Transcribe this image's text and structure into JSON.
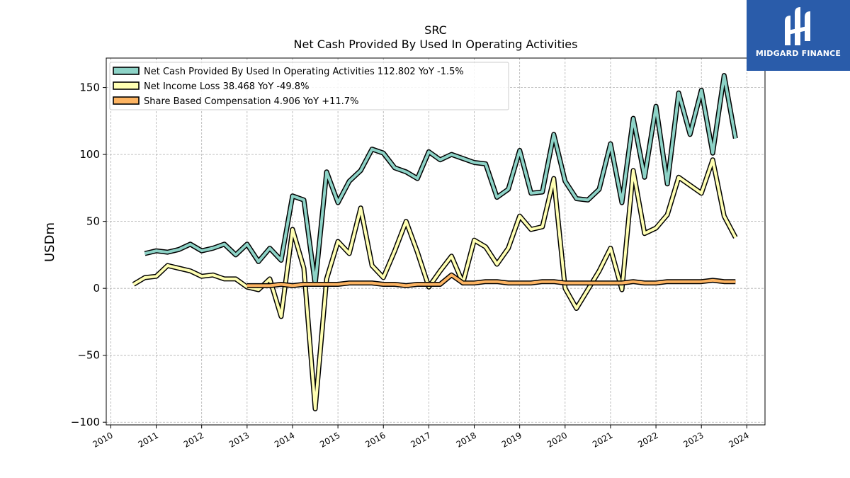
{
  "chart_data": {
    "type": "line",
    "title": "SRC",
    "subtitle": "Net Cash Provided By Used In Operating Activities",
    "xlabel": "",
    "ylabel": "USDm",
    "xlim": [
      2009.9,
      2024.4
    ],
    "ylim": [
      -102,
      172
    ],
    "x_ticks": [
      "2010",
      "2011",
      "2012",
      "2013",
      "2014",
      "2015",
      "2016",
      "2017",
      "2018",
      "2019",
      "2020",
      "2021",
      "2022",
      "2023",
      "2024"
    ],
    "y_ticks": [
      150,
      100,
      50,
      0,
      -50,
      -100
    ],
    "y_tick_labels": [
      "150",
      "100",
      "50",
      "0",
      "−50",
      "−100"
    ],
    "grid": true,
    "legend_position": "top-left",
    "series": [
      {
        "name": "Net Cash Provided By Used In Operating Activities  112.802 YoY -1.5%",
        "color": "#8dd3c7",
        "points": [
          [
            2010.75,
            26
          ],
          [
            2011.0,
            28
          ],
          [
            2011.25,
            27
          ],
          [
            2011.5,
            29
          ],
          [
            2011.75,
            33
          ],
          [
            2012.0,
            28
          ],
          [
            2012.25,
            30
          ],
          [
            2012.5,
            33
          ],
          [
            2012.75,
            25
          ],
          [
            2013.0,
            33
          ],
          [
            2013.25,
            20
          ],
          [
            2013.5,
            30
          ],
          [
            2013.75,
            21
          ],
          [
            2014.0,
            69
          ],
          [
            2014.25,
            66
          ],
          [
            2014.5,
            3
          ],
          [
            2014.75,
            87
          ],
          [
            2015.0,
            64
          ],
          [
            2015.25,
            80
          ],
          [
            2015.5,
            88
          ],
          [
            2015.75,
            104
          ],
          [
            2016.0,
            101
          ],
          [
            2016.25,
            90
          ],
          [
            2016.5,
            87
          ],
          [
            2016.75,
            82
          ],
          [
            2017.0,
            102
          ],
          [
            2017.25,
            96
          ],
          [
            2017.5,
            100
          ],
          [
            2017.75,
            97
          ],
          [
            2018.0,
            94
          ],
          [
            2018.25,
            93
          ],
          [
            2018.5,
            68
          ],
          [
            2018.75,
            74
          ],
          [
            2019.0,
            103
          ],
          [
            2019.25,
            71
          ],
          [
            2019.5,
            72
          ],
          [
            2019.75,
            115
          ],
          [
            2020.0,
            80
          ],
          [
            2020.25,
            67
          ],
          [
            2020.5,
            66
          ],
          [
            2020.75,
            74
          ],
          [
            2021.0,
            108
          ],
          [
            2021.25,
            64
          ],
          [
            2021.5,
            127
          ],
          [
            2021.75,
            83
          ],
          [
            2022.0,
            136
          ],
          [
            2022.25,
            78
          ],
          [
            2022.5,
            146
          ],
          [
            2022.75,
            115
          ],
          [
            2023.0,
            148
          ],
          [
            2023.25,
            101
          ],
          [
            2023.5,
            159
          ],
          [
            2023.75,
            112
          ]
        ]
      },
      {
        "name": "Net Income Loss  38.468 YoY -49.8%",
        "color": "#ffffb3",
        "points": [
          [
            2010.5,
            3
          ],
          [
            2010.75,
            8
          ],
          [
            2011.0,
            9
          ],
          [
            2011.25,
            17
          ],
          [
            2011.5,
            15
          ],
          [
            2011.75,
            13
          ],
          [
            2012.0,
            9
          ],
          [
            2012.25,
            10
          ],
          [
            2012.5,
            7
          ],
          [
            2012.75,
            7
          ],
          [
            2013.0,
            1
          ],
          [
            2013.25,
            -1
          ],
          [
            2013.5,
            7
          ],
          [
            2013.75,
            -21
          ],
          [
            2014.0,
            44
          ],
          [
            2014.25,
            15
          ],
          [
            2014.5,
            -90
          ],
          [
            2014.75,
            7
          ],
          [
            2015.0,
            35
          ],
          [
            2015.25,
            26
          ],
          [
            2015.5,
            60
          ],
          [
            2015.75,
            17
          ],
          [
            2016.0,
            8
          ],
          [
            2016.25,
            28
          ],
          [
            2016.5,
            50
          ],
          [
            2016.75,
            27
          ],
          [
            2017.0,
            1
          ],
          [
            2017.25,
            13
          ],
          [
            2017.5,
            24
          ],
          [
            2017.75,
            4
          ],
          [
            2018.0,
            36
          ],
          [
            2018.25,
            31
          ],
          [
            2018.5,
            18
          ],
          [
            2018.75,
            30
          ],
          [
            2019.0,
            54
          ],
          [
            2019.25,
            44
          ],
          [
            2019.5,
            46
          ],
          [
            2019.75,
            82
          ],
          [
            2020.0,
            0
          ],
          [
            2020.25,
            -15
          ],
          [
            2020.5,
            -1
          ],
          [
            2020.75,
            13
          ],
          [
            2021.0,
            30
          ],
          [
            2021.25,
            -1
          ],
          [
            2021.5,
            88
          ],
          [
            2021.75,
            41
          ],
          [
            2022.0,
            45
          ],
          [
            2022.25,
            55
          ],
          [
            2022.5,
            83
          ],
          [
            2022.75,
            77
          ],
          [
            2023.0,
            71
          ],
          [
            2023.25,
            96
          ],
          [
            2023.5,
            54
          ],
          [
            2023.75,
            38
          ]
        ]
      },
      {
        "name": "Share Based Compensation  4.906 YoY +11.7%",
        "color": "#fdb462",
        "points": [
          [
            2013.0,
            2
          ],
          [
            2013.25,
            2
          ],
          [
            2013.5,
            2
          ],
          [
            2013.75,
            3
          ],
          [
            2014.0,
            2
          ],
          [
            2014.25,
            3
          ],
          [
            2014.5,
            3
          ],
          [
            2014.75,
            3
          ],
          [
            2015.0,
            3
          ],
          [
            2015.25,
            4
          ],
          [
            2015.5,
            4
          ],
          [
            2015.75,
            4
          ],
          [
            2016.0,
            3
          ],
          [
            2016.25,
            3
          ],
          [
            2016.5,
            2
          ],
          [
            2016.75,
            3
          ],
          [
            2017.0,
            3
          ],
          [
            2017.25,
            3
          ],
          [
            2017.5,
            10
          ],
          [
            2017.75,
            4
          ],
          [
            2018.0,
            4
          ],
          [
            2018.25,
            5
          ],
          [
            2018.5,
            5
          ],
          [
            2018.75,
            4
          ],
          [
            2019.0,
            4
          ],
          [
            2019.25,
            4
          ],
          [
            2019.5,
            5
          ],
          [
            2019.75,
            5
          ],
          [
            2020.0,
            4
          ],
          [
            2020.25,
            4
          ],
          [
            2020.5,
            4
          ],
          [
            2020.75,
            4
          ],
          [
            2021.0,
            4
          ],
          [
            2021.25,
            4
          ],
          [
            2021.5,
            5
          ],
          [
            2021.75,
            4
          ],
          [
            2022.0,
            4
          ],
          [
            2022.25,
            5
          ],
          [
            2022.5,
            5
          ],
          [
            2022.75,
            5
          ],
          [
            2023.0,
            5
          ],
          [
            2023.25,
            6
          ],
          [
            2023.5,
            5
          ],
          [
            2023.75,
            5
          ]
        ]
      }
    ]
  },
  "logo": {
    "text": "MIDGARD FINANCE",
    "color": "#2a5caa"
  }
}
